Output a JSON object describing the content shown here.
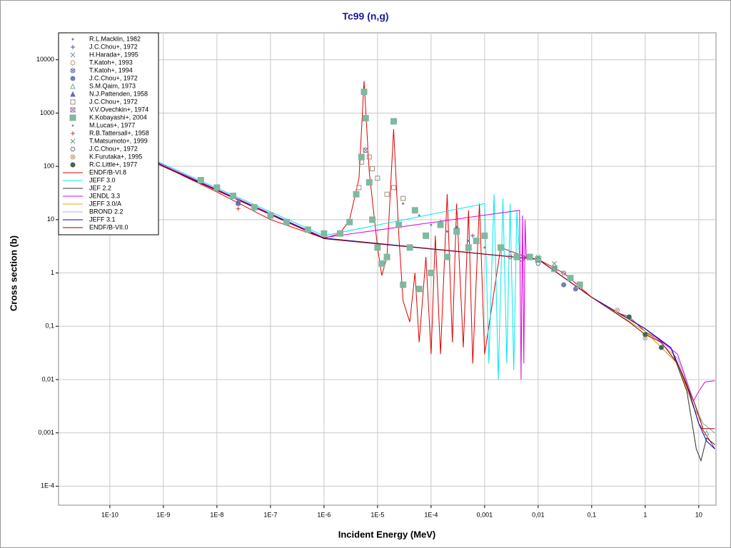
{
  "chart_data": {
    "type": "scatter",
    "title": "Tc99 (n,g)",
    "x_label": "Incident Energy (MeV)",
    "y_label": "Cross section (b)",
    "log_x": true,
    "log_y": true,
    "grid": true,
    "legend": "upper left",
    "xlim": [
      1.1e-11,
      21
    ],
    "ylim": [
      4.4e-05,
      32000
    ],
    "xticks": [
      {
        "value": 1e-10,
        "label": "1E-10"
      },
      {
        "value": 1e-09,
        "label": "1E-9"
      },
      {
        "value": 1e-08,
        "label": "1E-8"
      },
      {
        "value": 1e-07,
        "label": "1E-7"
      },
      {
        "value": 1e-06,
        "label": "1E-6"
      },
      {
        "value": 1e-05,
        "label": "1E-5"
      },
      {
        "value": 0.0001,
        "label": "1E-4"
      },
      {
        "value": 0.001,
        "label": "0,001"
      },
      {
        "value": 0.01,
        "label": "0,01"
      },
      {
        "value": 0.1,
        "label": "0,1"
      },
      1,
      10
    ],
    "yticks": [
      10000,
      1000,
      100,
      10,
      1,
      {
        "value": 0.1,
        "label": "0,1"
      },
      {
        "value": 0.01,
        "label": "0,01"
      },
      {
        "value": 0.001,
        "label": "0,001"
      },
      {
        "value": 0.0001,
        "label": "1E-4"
      }
    ],
    "series": [
      {
        "name": "R.L.Macklin, 1982",
        "marker": "dot",
        "color": "#6b7fa8",
        "x": [
          3e-05,
          6e-05,
          0.0001,
          0.0002,
          0.0005,
          0.001
        ],
        "values": [
          20,
          12,
          8,
          6,
          4,
          3
        ]
      },
      {
        "name": "J.C.Chou+, 1972",
        "marker": "plus",
        "color": "#4a5a9a",
        "x": [
          2.5e-08,
          0.00015,
          0.0003,
          0.0006
        ],
        "values": [
          22,
          9,
          7,
          5
        ]
      },
      {
        "name": "H.Harada+, 1995",
        "marker": "cross",
        "color": "#7a86b0",
        "x": [
          2.5e-08
        ],
        "values": [
          23
        ]
      },
      {
        "name": "T.Katoh+, 1993",
        "marker": "circle",
        "color": "#b89870",
        "x": [
          2.5e-08
        ],
        "values": [
          21
        ]
      },
      {
        "name": "T.Katoh+, 1994",
        "marker": "circle-x",
        "color": "#5a6a9a",
        "x": [
          2.5e-08
        ],
        "values": [
          20
        ]
      },
      {
        "name": "J.C.Chou+, 1972",
        "marker": "filled-circle",
        "color": "#7080b0",
        "x": [
          0.03,
          0.05
        ],
        "values": [
          0.6,
          0.5
        ]
      },
      {
        "name": "S.M.Qaim, 1973",
        "marker": "triangle",
        "color": "#6fa8a0",
        "x": [
          14
        ],
        "values": [
          0.001
        ]
      },
      {
        "name": "N.J.Pattenden, 1958",
        "marker": "filled-triangle",
        "color": "#6a6ab0",
        "x": [
          2.5e-08
        ],
        "values": [
          21
        ]
      },
      {
        "name": "J.C.Chou+, 1972",
        "marker": "square",
        "color": "#a08c78",
        "x": [
          4.5e-06,
          5e-06,
          6e-06,
          7e-06,
          8e-06,
          1e-05,
          1.5e-05,
          2e-05,
          3e-05
        ],
        "values": [
          40,
          120,
          200,
          150,
          90,
          60,
          30,
          40,
          25
        ]
      },
      {
        "name": "V.V.Ovechkin+, 1974",
        "marker": "square-x",
        "color": "#9a7a9a",
        "x": [
          5e-06,
          6e-06
        ],
        "values": [
          150,
          200
        ]
      },
      {
        "name": "K.Kobayashi+, 2004",
        "marker": "filled-square",
        "color": "#80b8a0",
        "x": [
          5e-09,
          1e-08,
          2e-08,
          5e-08,
          1e-07,
          2e-07,
          5e-07,
          1e-06,
          2e-06,
          3e-06,
          4e-06,
          5e-06,
          5.6e-06,
          6e-06,
          7e-06,
          8e-06,
          1e-05,
          1.2e-05,
          1.5e-05,
          2e-05,
          2.5e-05,
          3e-05,
          4e-05,
          5e-05,
          6e-05,
          8e-05,
          0.0001,
          0.00015,
          0.0002,
          0.0003,
          0.0005,
          0.0007,
          0.001,
          0.002,
          0.004,
          0.007,
          0.01,
          0.02,
          0.04,
          0.06
        ],
        "values": [
          55,
          40,
          28,
          17,
          12,
          9,
          6.5,
          5.5,
          5.5,
          9,
          30,
          150,
          2500,
          800,
          50,
          10,
          3,
          1.5,
          2,
          700,
          8,
          0.6,
          3,
          15,
          0.5,
          5,
          1,
          8,
          2,
          6,
          3,
          4,
          5,
          3,
          2,
          2,
          1.8,
          1.2,
          0.8,
          0.6
        ]
      },
      {
        "name": "M.Lucas+, 1977",
        "marker": "dot",
        "color": "#8888aa",
        "x": [
          0.003,
          0.006
        ],
        "values": [
          2.5,
          2
        ]
      },
      {
        "name": "R.B.Tattersall+, 1958",
        "marker": "plus",
        "color": "#c04040",
        "x": [
          2.5e-08
        ],
        "values": [
          16
        ]
      },
      {
        "name": "T.Matsumoto+, 1999",
        "marker": "cross",
        "color": "#60a060",
        "x": [
          0.01,
          0.02
        ],
        "values": [
          2,
          1.5
        ]
      },
      {
        "name": "J.C.Chou+, 1972",
        "marker": "hexagon",
        "color": "#707890",
        "x": [
          0.003,
          0.005,
          0.01,
          0.02,
          0.03
        ],
        "values": [
          2,
          1.8,
          1.5,
          1.2,
          1
        ]
      },
      {
        "name": "K.Furutaka+, 1995",
        "marker": "circle-x",
        "color": "#c0a080",
        "x": [
          0.3,
          1
        ],
        "values": [
          0.2,
          0.06
        ]
      },
      {
        "name": "R.C.Little+, 1977",
        "marker": "filled-circle",
        "color": "#406850",
        "x": [
          0.5,
          1,
          2
        ],
        "values": [
          0.15,
          0.07,
          0.04
        ]
      },
      {
        "name": "ENDF/B-VI.8",
        "type": "line",
        "color": "#e00000",
        "x": [
          1e-11,
          1e-09,
          1e-08,
          1e-07,
          1e-06,
          2e-06,
          3e-06,
          4.5e-06,
          5.6e-06,
          7e-06,
          1e-05,
          1.2e-05,
          1.5e-05,
          2e-05,
          2.5e-05,
          3e-05,
          4e-05,
          5e-05,
          6e-05,
          8e-05,
          0.0001,
          0.00012,
          0.00015,
          0.0002,
          0.00025,
          0.0003,
          0.0004,
          0.0005,
          0.0006,
          0.0008,
          0.001,
          0.002,
          0.006,
          0.01,
          0.03,
          0.1,
          0.3,
          0.5,
          1,
          2,
          4,
          7,
          10,
          15,
          20
        ],
        "values": [
          1000,
          100,
          33,
          10,
          4.5,
          5.5,
          10,
          60,
          4000,
          80,
          3,
          0.9,
          2,
          500,
          5,
          0.3,
          0.12,
          1,
          0.05,
          2,
          0.03,
          5,
          0.03,
          30,
          0.05,
          20,
          0.04,
          15,
          0.02,
          20,
          0.03,
          3,
          2,
          1.8,
          1,
          0.35,
          0.18,
          0.15,
          0.08,
          0.05,
          0.02,
          0.005,
          0.0015,
          0.0008,
          0.0005
        ]
      },
      {
        "name": "JEFF 3.0",
        "type": "line",
        "color": "#00e8f0",
        "x": [
          1e-11,
          1e-09,
          1e-06,
          0.001,
          0.0012,
          0.0015,
          0.0018,
          0.0022,
          0.0026,
          0.003,
          0.0035,
          0.004,
          0.0045,
          0.01,
          0.1,
          1,
          4,
          8,
          12,
          20
        ],
        "values": [
          1100,
          110,
          5,
          20,
          0.02,
          30,
          0.01,
          25,
          0.02,
          20,
          0.015,
          15,
          2,
          1.8,
          0.35,
          0.08,
          0.02,
          0.003,
          0.0015,
          0.001
        ]
      },
      {
        "name": "JEF 2.2",
        "type": "line",
        "color": "#303030",
        "x": [
          1e-11,
          1e-09,
          1e-06,
          0.01,
          0.1,
          1,
          3,
          6,
          9,
          11,
          14,
          20
        ],
        "values": [
          1000,
          100,
          4.5,
          1.8,
          0.35,
          0.09,
          0.04,
          0.006,
          0.0005,
          0.0003,
          0.0008,
          0.0006
        ]
      },
      {
        "name": "JENDL 3.3",
        "type": "line",
        "color": "#e000e0",
        "x": [
          1e-11,
          1e-09,
          1e-06,
          0.0045,
          0.0048,
          0.0051,
          0.0054,
          0.0057,
          0.006,
          0.01,
          0.1,
          1,
          4,
          8,
          10,
          13,
          20
        ],
        "values": [
          1050,
          105,
          4.6,
          15,
          0.01,
          12,
          0.02,
          10,
          2,
          1.8,
          0.35,
          0.09,
          0.03,
          0.004,
          0.006,
          0.009,
          0.0095
        ]
      },
      {
        "name": "JEFF 3.0/A",
        "type": "line",
        "color": "#f0a000",
        "x": [
          1e-11,
          1e-09,
          1e-06,
          0.01,
          0.1,
          1,
          4,
          8,
          12,
          20
        ],
        "values": [
          1020,
          102,
          4.5,
          1.8,
          0.35,
          0.08,
          0.02,
          0.003,
          0.0015,
          0.001
        ]
      },
      {
        "name": "BROND 2.2",
        "type": "line",
        "color": "#a0b8c8",
        "x": [
          1e-11,
          1e-09,
          1e-06,
          0.01,
          0.1,
          1,
          4,
          8,
          12,
          20
        ],
        "values": [
          1000,
          100,
          4.5,
          1.8,
          0.35,
          0.09,
          0.025,
          0.004,
          0.0015,
          0.001
        ]
      },
      {
        "name": "JEFF 3.1",
        "type": "line",
        "color": "#0000c0",
        "x": [
          1e-11,
          1e-09,
          1e-06,
          0.01,
          0.1,
          1,
          3,
          6,
          10,
          14,
          20
        ],
        "values": [
          1010,
          101,
          4.5,
          1.8,
          0.35,
          0.09,
          0.04,
          0.008,
          0.0015,
          0.0007,
          0.0005
        ]
      },
      {
        "name": "ENDF/B-VII.0",
        "type": "line",
        "color": "#a00000",
        "x": [
          1e-11,
          1e-09,
          1e-06,
          0.01,
          0.1,
          0.5,
          1,
          2,
          4,
          8,
          12,
          20
        ],
        "values": [
          990,
          99,
          4.4,
          1.8,
          0.35,
          0.12,
          0.07,
          0.05,
          0.02,
          0.004,
          0.0012,
          0.0012
        ]
      }
    ]
  }
}
